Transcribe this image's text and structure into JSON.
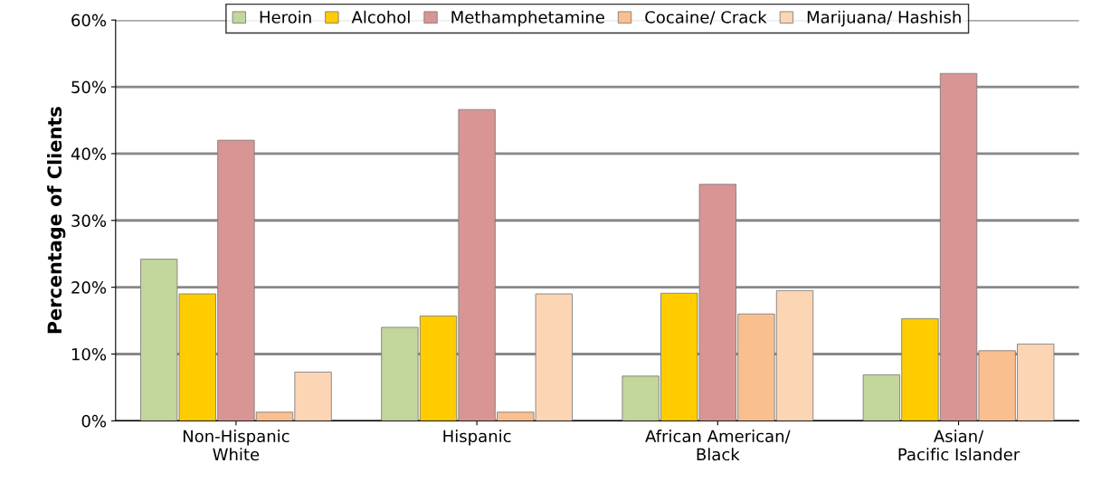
{
  "chart_data": {
    "type": "bar",
    "ylabel": "Percentage of Clients",
    "categories": [
      "Non-Hispanic\nWhite",
      "Hispanic",
      "African American/\nBlack",
      "Asian/\nPacific Islander"
    ],
    "series": [
      {
        "name": "Heroin",
        "color": "#c3d69b",
        "values": [
          24.2,
          14,
          6.7,
          6.9
        ]
      },
      {
        "name": "Alcohol",
        "color": "#ffcc00",
        "values": [
          19,
          15.7,
          19.1,
          15.3
        ]
      },
      {
        "name": "Methamphetamine",
        "color": "#d99594",
        "values": [
          42,
          46.6,
          35.4,
          52
        ]
      },
      {
        "name": "Cocaine/ Crack",
        "color": "#fabf8f",
        "values": [
          1.3,
          1.3,
          16,
          10.5
        ]
      },
      {
        "name": "Marijuana/ Hashish",
        "color": "#fcd5b4",
        "values": [
          7.3,
          19,
          19.5,
          11.5
        ]
      }
    ],
    "ylim": [
      0,
      60
    ],
    "yticks": [
      {
        "value": 0,
        "label": "0%"
      },
      {
        "value": 10,
        "label": "10%"
      },
      {
        "value": 20,
        "label": "20%"
      },
      {
        "value": 30,
        "label": "30%"
      },
      {
        "value": 40,
        "label": "40%"
      },
      {
        "value": 50,
        "label": "50%"
      },
      {
        "value": 60,
        "label": "60%"
      }
    ],
    "grid": "y",
    "legend": "top"
  }
}
